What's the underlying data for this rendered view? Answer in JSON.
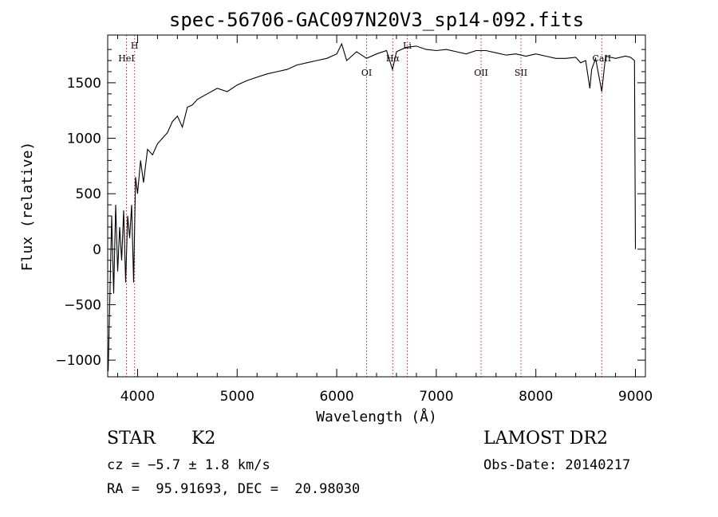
{
  "chart_data": {
    "type": "line",
    "title": "spec-56706-GAC097N20V3_sp14-092.fits",
    "xlabel": "Wavelength (Å)",
    "ylabel": "Flux (relative)",
    "xlim": [
      3700,
      9100
    ],
    "ylim": [
      -1150,
      1930
    ],
    "xticks": [
      4000,
      5000,
      6000,
      7000,
      8000,
      9000
    ],
    "yticks": [
      -1000,
      -500,
      0,
      500,
      1000,
      1500
    ],
    "grid": false,
    "series": [
      {
        "color": "#000000",
        "x": [
          3705,
          3720,
          3740,
          3760,
          3780,
          3800,
          3820,
          3840,
          3860,
          3880,
          3900,
          3920,
          3940,
          3960,
          3980,
          4000,
          4030,
          4060,
          4100,
          4150,
          4200,
          4250,
          4300,
          4350,
          4400,
          4450,
          4500,
          4550,
          4600,
          4700,
          4800,
          4900,
          5000,
          5100,
          5200,
          5300,
          5400,
          5500,
          5600,
          5700,
          5800,
          5900,
          6000,
          6050,
          6100,
          6200,
          6300,
          6400,
          6500,
          6560,
          6600,
          6700,
          6800,
          6900,
          7000,
          7100,
          7200,
          7300,
          7400,
          7500,
          7600,
          7700,
          7800,
          7900,
          8000,
          8100,
          8200,
          8300,
          8400,
          8450,
          8500,
          8542,
          8560,
          8600,
          8662,
          8700,
          8800,
          8900,
          8950,
          8990,
          9000
        ],
        "y": [
          -1100,
          -500,
          300,
          -400,
          400,
          -200,
          200,
          -100,
          350,
          -300,
          300,
          100,
          400,
          -300,
          650,
          500,
          800,
          600,
          900,
          850,
          950,
          1000,
          1050,
          1150,
          1200,
          1100,
          1280,
          1300,
          1350,
          1400,
          1450,
          1420,
          1480,
          1520,
          1550,
          1580,
          1600,
          1620,
          1660,
          1680,
          1700,
          1720,
          1760,
          1850,
          1700,
          1780,
          1720,
          1760,
          1790,
          1620,
          1780,
          1820,
          1830,
          1800,
          1790,
          1800,
          1780,
          1760,
          1790,
          1790,
          1770,
          1750,
          1760,
          1740,
          1760,
          1740,
          1720,
          1720,
          1730,
          1680,
          1700,
          1450,
          1620,
          1720,
          1420,
          1740,
          1720,
          1740,
          1730,
          1700,
          0
        ]
      }
    ],
    "lines": [
      {
        "label": "HeI",
        "x": 3888,
        "label_row": 1
      },
      {
        "label": "H",
        "x": 3970,
        "label_row": 0
      },
      {
        "label": "OI",
        "x": 6300,
        "label_row": 2
      },
      {
        "label": "Hα",
        "x": 6563,
        "label_row": 1
      },
      {
        "label": "Li",
        "x": 6708,
        "label_row": 0
      },
      {
        "label": "OII",
        "x": 7450,
        "label_row": 2
      },
      {
        "label": "SII",
        "x": 7850,
        "label_row": 2
      },
      {
        "label": "CaII",
        "x": 8662,
        "label_row": 1
      }
    ]
  },
  "info": {
    "object_type": "STAR",
    "subclass": "K2",
    "survey": "LAMOST DR2",
    "cz": "cz = −5.7 ± 1.8 km/s",
    "obs_date": "Obs-Date: 20140217",
    "radec": "RA =  95.91693, DEC =  20.98030"
  }
}
